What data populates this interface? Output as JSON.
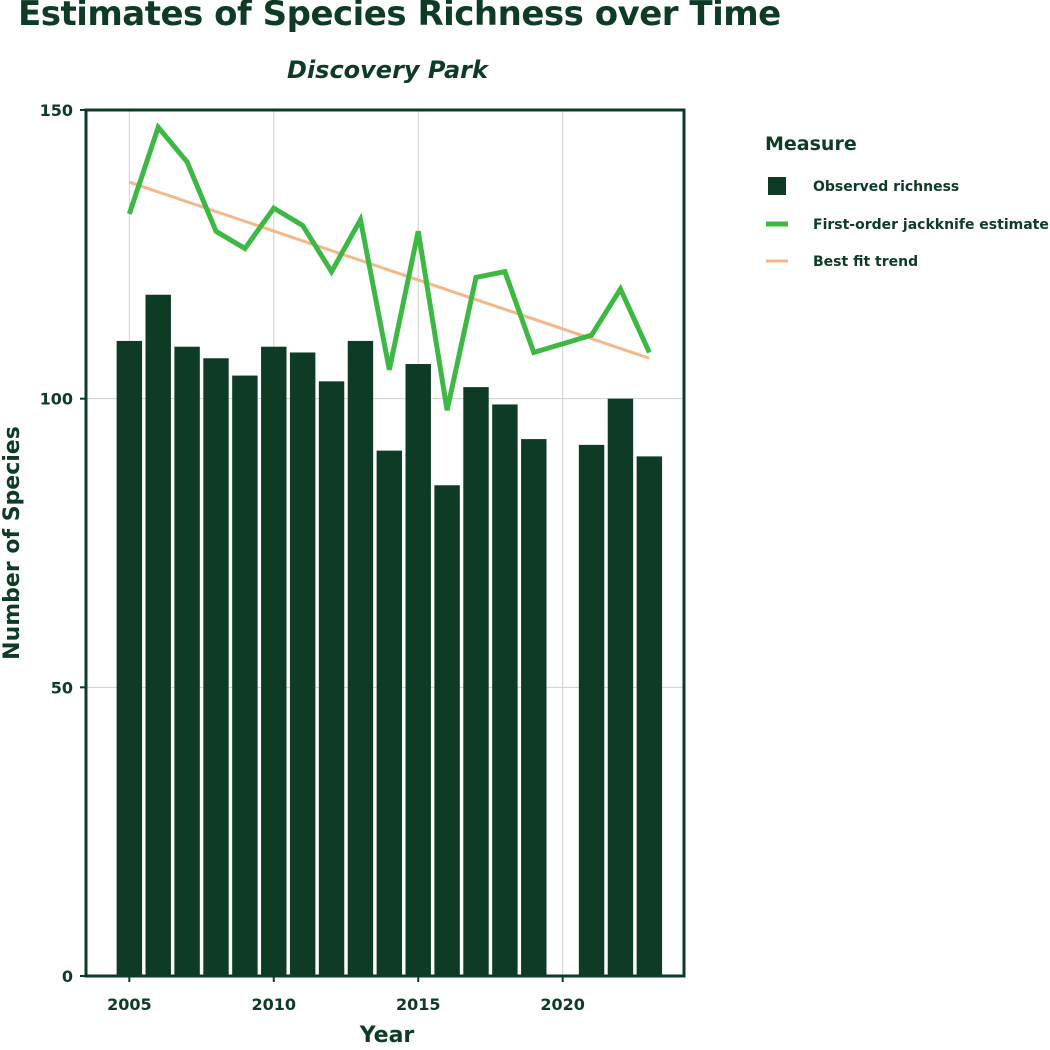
{
  "chart_data": {
    "type": "bar",
    "title": "Estimates of Species Richness over Time",
    "subtitle": "Discovery Park",
    "xlabel": "Year",
    "ylabel": "Number of Species",
    "xlim": [
      2003.5,
      2024.2
    ],
    "ylim": [
      0,
      150
    ],
    "x_ticks": [
      2005,
      2010,
      2015,
      2020
    ],
    "y_ticks": [
      0,
      50,
      100,
      150
    ],
    "grid": true,
    "legend_position": "right",
    "legend_title": "Measure",
    "colors": {
      "observed": "#0d3b26",
      "jackknife": "#3db843",
      "trend": "#f4b98b"
    },
    "series": [
      {
        "name": "Observed richness",
        "type": "bar",
        "x": [
          2005,
          2006,
          2007,
          2008,
          2009,
          2010,
          2011,
          2012,
          2013,
          2014,
          2015,
          2016,
          2017,
          2018,
          2019,
          2021,
          2022,
          2023
        ],
        "values": [
          110,
          118,
          109,
          107,
          104,
          109,
          108,
          103,
          110,
          91,
          106,
          85,
          102,
          99,
          93,
          92,
          100,
          90
        ]
      },
      {
        "name": "First-order jackknife estimate",
        "type": "line",
        "x": [
          2005,
          2006,
          2007,
          2008,
          2009,
          2010,
          2011,
          2012,
          2013,
          2014,
          2015,
          2016,
          2017,
          2018,
          2019,
          2021,
          2022,
          2023
        ],
        "values": [
          132,
          147,
          141,
          129,
          126,
          133,
          130,
          122,
          131,
          105,
          129,
          98,
          121,
          122,
          108,
          111,
          119,
          108
        ]
      },
      {
        "name": "Best fit trend",
        "type": "line",
        "x": [
          2005,
          2023
        ],
        "values": [
          137.5,
          107
        ]
      }
    ]
  }
}
